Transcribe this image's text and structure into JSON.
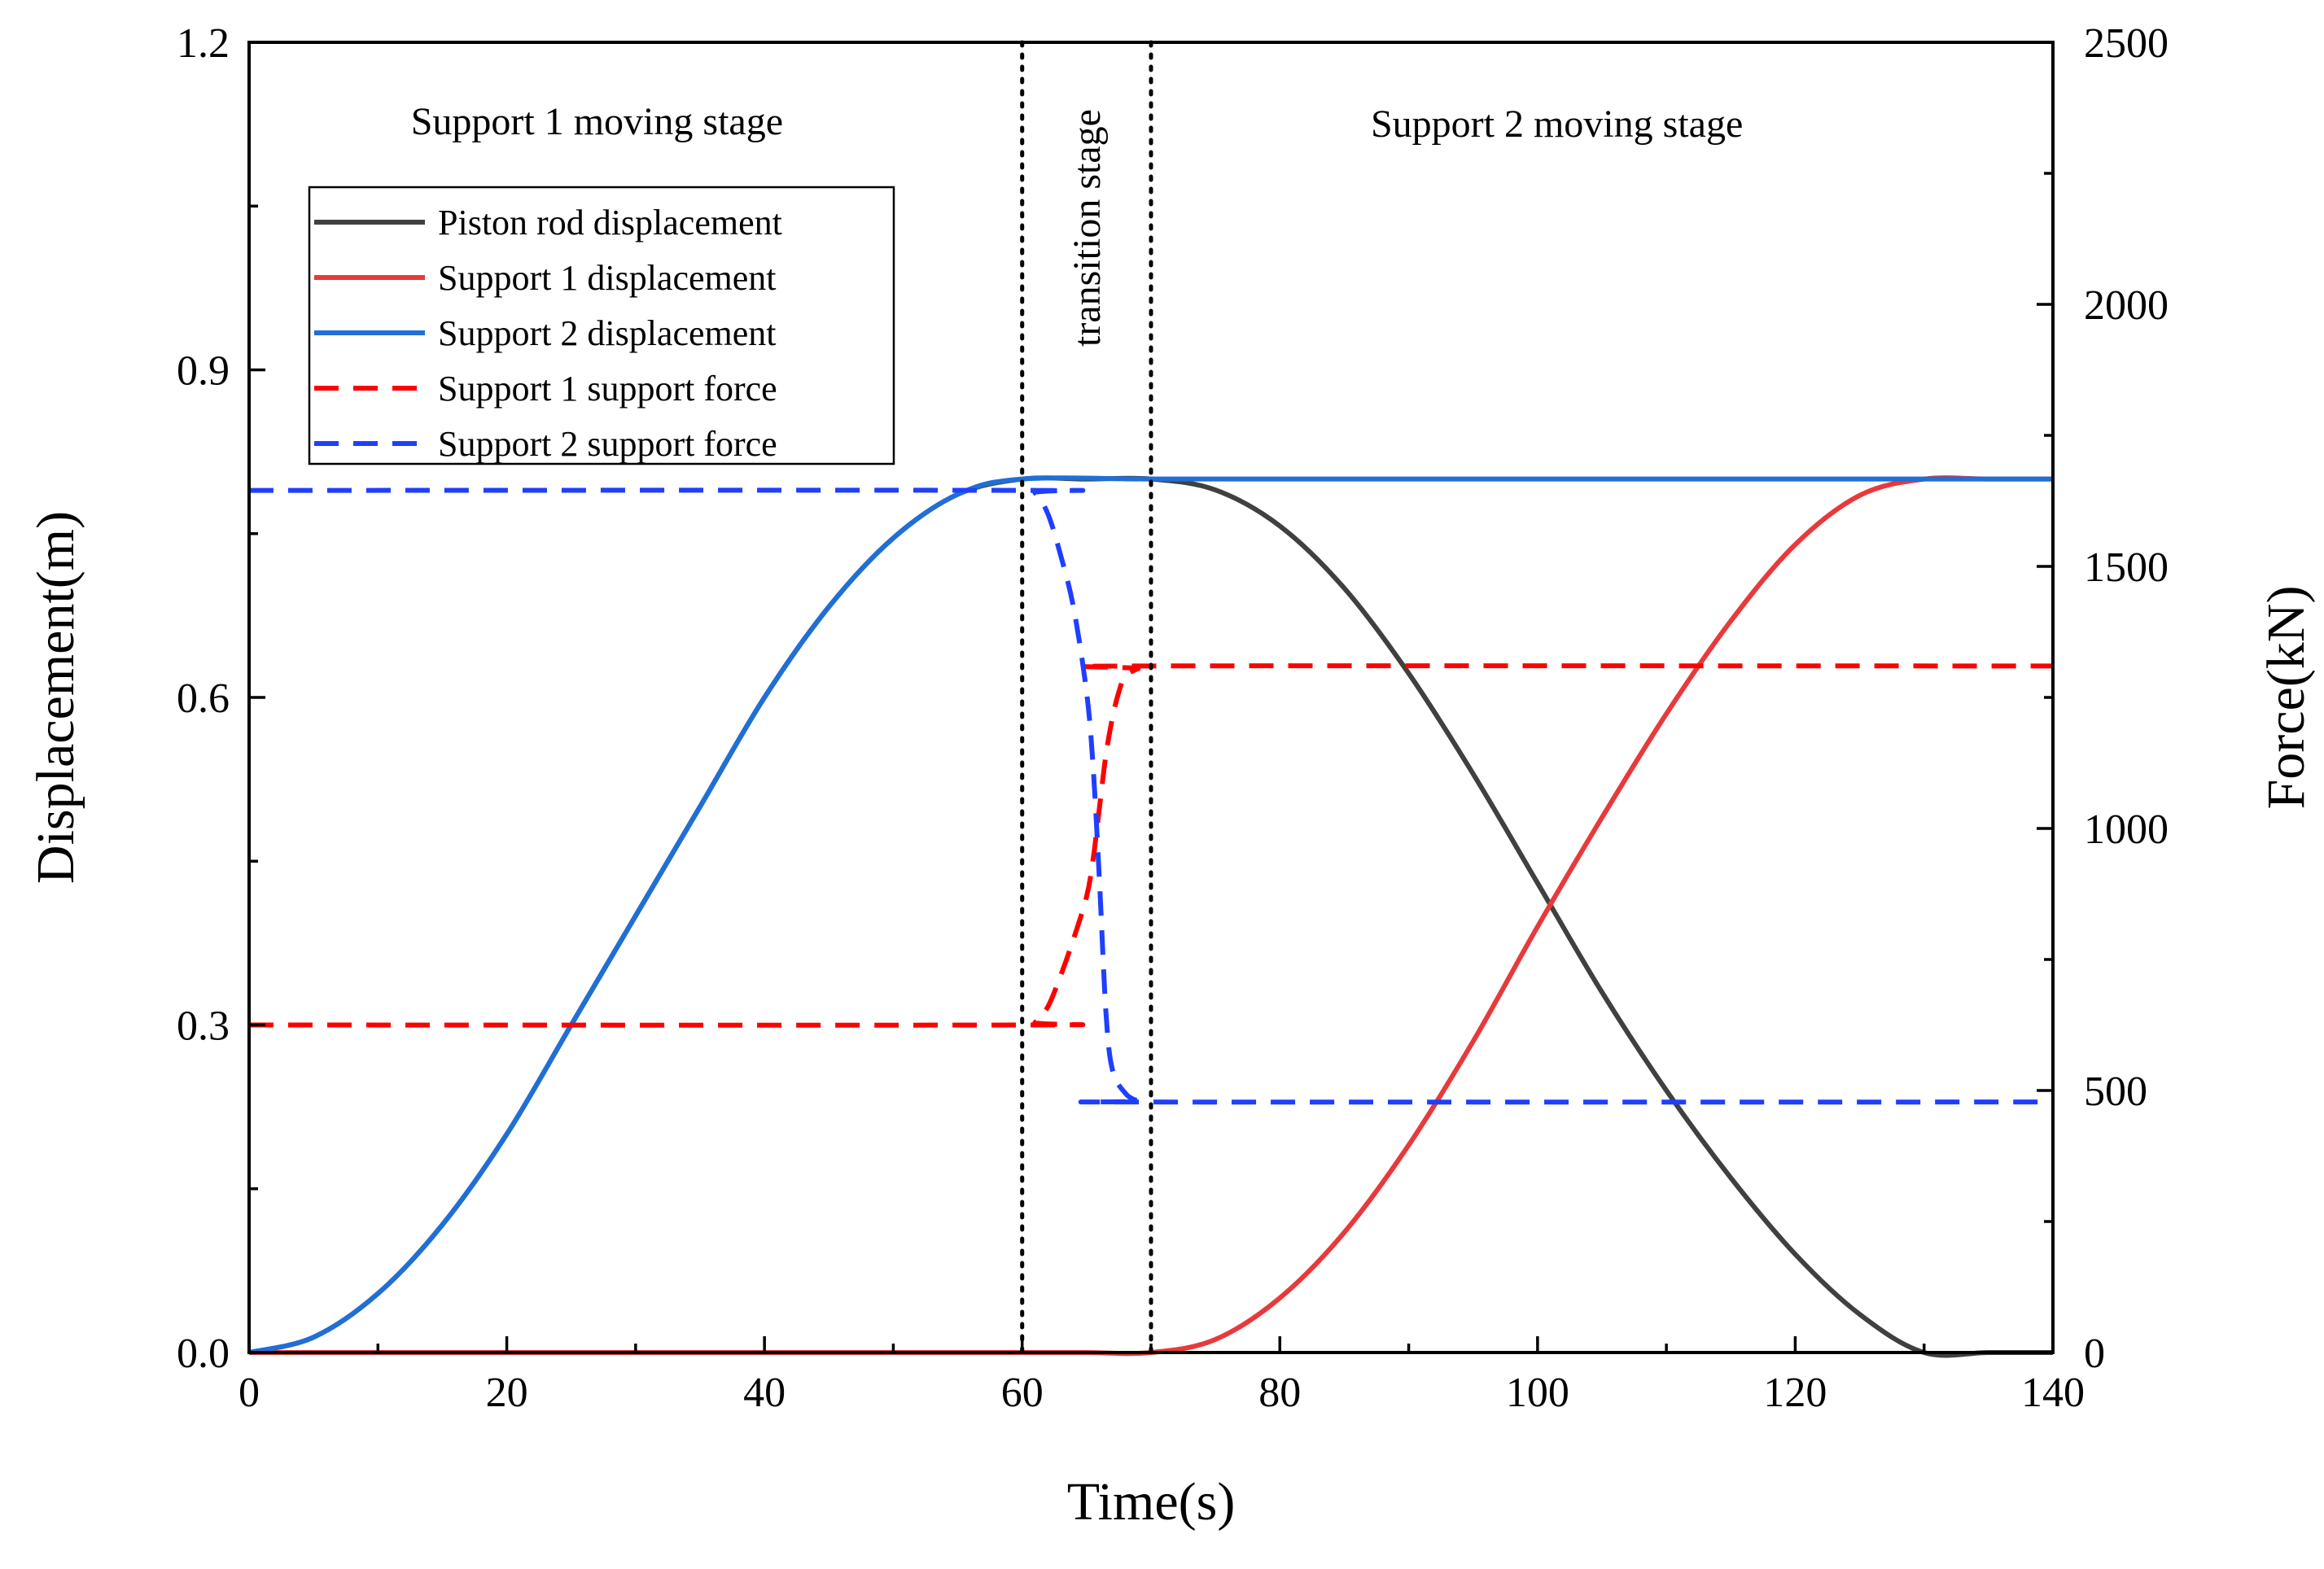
{
  "chart_data": {
    "type": "line",
    "xlabel": "Time(s)",
    "ylabel": "Displacement(m)",
    "y2label": "Force(kN)",
    "xlim": [
      0,
      140
    ],
    "ylim": [
      0,
      1.2
    ],
    "y2lim": [
      0,
      2500
    ],
    "x_ticks": [
      "0",
      "20",
      "40",
      "60",
      "80",
      "100",
      "120",
      "140"
    ],
    "y_ticks": [
      "0.0",
      "0.3",
      "0.6",
      "0.9",
      "1.2"
    ],
    "y2_ticks": [
      "0",
      "500",
      "1000",
      "1500",
      "2000",
      "2500"
    ],
    "grid": false,
    "legend_position": "upper-left",
    "stages": [
      {
        "label": "Support 1 moving stage",
        "x_start": 0,
        "x_end": 60
      },
      {
        "label": "transition stage",
        "x_start": 60,
        "x_end": 70
      },
      {
        "label": "Support 2 moving stage",
        "x_start": 70,
        "x_end": 140
      }
    ],
    "stage_boundaries": [
      60,
      70
    ],
    "series": [
      {
        "name": "Piston rod displacement",
        "axis": "left",
        "style": "solid",
        "color": "#404040",
        "x": [
          0,
          5,
          10,
          15,
          20,
          25,
          30,
          35,
          40,
          45,
          50,
          55,
          60,
          65,
          70,
          75,
          80,
          85,
          90,
          95,
          100,
          105,
          110,
          115,
          120,
          125,
          130,
          135,
          140
        ],
        "y": [
          0.0,
          0.014,
          0.054,
          0.117,
          0.2,
          0.3,
          0.4,
          0.5,
          0.6,
          0.683,
          0.746,
          0.786,
          0.8,
          0.8,
          0.8,
          0.79,
          0.757,
          0.7,
          0.622,
          0.53,
          0.43,
          0.33,
          0.24,
          0.16,
          0.09,
          0.035,
          0.0,
          0.0,
          0.0
        ]
      },
      {
        "name": "Support 1 displacement",
        "axis": "left",
        "style": "solid",
        "color": "#e8393c",
        "x": [
          0,
          10,
          20,
          30,
          40,
          50,
          60,
          65,
          70,
          75,
          80,
          85,
          90,
          95,
          100,
          105,
          110,
          115,
          120,
          125,
          130,
          135,
          140
        ],
        "y": [
          0.0,
          0.0,
          0.0,
          0.0,
          0.0,
          0.0,
          0.0,
          0.0,
          0.0,
          0.012,
          0.05,
          0.11,
          0.19,
          0.285,
          0.39,
          0.49,
          0.585,
          0.67,
          0.74,
          0.785,
          0.8,
          0.8,
          0.8
        ]
      },
      {
        "name": "Support 2 displacement",
        "axis": "left",
        "style": "solid",
        "color": "#1f6fd6",
        "x": [
          0,
          5,
          10,
          15,
          20,
          25,
          30,
          35,
          40,
          45,
          50,
          55,
          60,
          70,
          80,
          90,
          100,
          110,
          120,
          130,
          140
        ],
        "y": [
          0.0,
          0.014,
          0.054,
          0.117,
          0.2,
          0.3,
          0.4,
          0.5,
          0.6,
          0.683,
          0.746,
          0.786,
          0.8,
          0.8,
          0.8,
          0.8,
          0.8,
          0.8,
          0.8,
          0.8,
          0.8
        ]
      },
      {
        "name": "Support 1 support force",
        "axis": "right",
        "style": "dashed",
        "color": "#ff0000",
        "x": [
          0,
          60,
          61,
          62,
          63,
          64,
          65,
          65.5,
          66,
          66.5,
          67,
          67.5,
          68,
          69,
          70,
          140
        ],
        "y": [
          625,
          625,
          630,
          660,
          720,
          790,
          870,
          940,
          1040,
          1140,
          1210,
          1260,
          1290,
          1305,
          1310,
          1310
        ]
      },
      {
        "name": "Support 2 support force",
        "axis": "right",
        "style": "dashed",
        "color": "#1f3fff",
        "x": [
          0,
          60,
          61,
          62,
          63,
          64,
          65,
          65.5,
          66,
          66.5,
          67,
          68,
          69,
          70,
          140
        ],
        "y": [
          1645,
          1645,
          1640,
          1600,
          1520,
          1420,
          1260,
          1120,
          900,
          650,
          540,
          495,
          480,
          478,
          478
        ]
      }
    ]
  }
}
